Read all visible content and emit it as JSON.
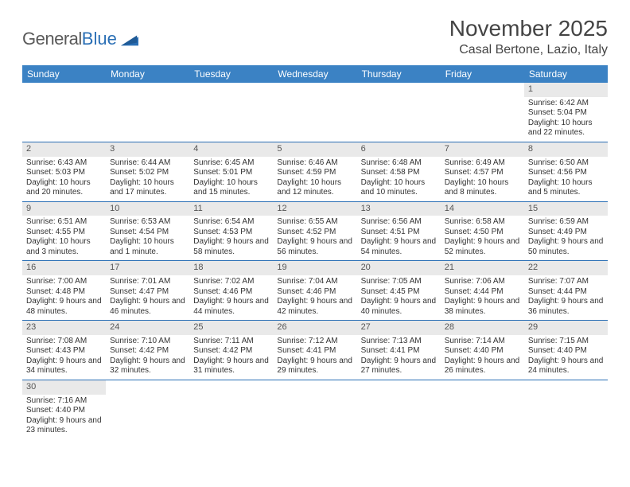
{
  "logo": {
    "word1": "General",
    "word2": "Blue"
  },
  "header": {
    "title": "November 2025",
    "location": "Casal Bertone, Lazio, Italy"
  },
  "colors": {
    "header_bar": "#3b82c4",
    "week_divider": "#2a6fb5",
    "daynum_bg": "#e9e9e9",
    "logo_gray": "#5a5a5a",
    "logo_blue": "#2a6fb5"
  },
  "dow": [
    "Sunday",
    "Monday",
    "Tuesday",
    "Wednesday",
    "Thursday",
    "Friday",
    "Saturday"
  ],
  "weeks": [
    [
      {
        "blank": true
      },
      {
        "blank": true
      },
      {
        "blank": true
      },
      {
        "blank": true
      },
      {
        "blank": true
      },
      {
        "blank": true
      },
      {
        "day": "1",
        "sunrise": "Sunrise: 6:42 AM",
        "sunset": "Sunset: 5:04 PM",
        "daylight": "Daylight: 10 hours and 22 minutes."
      }
    ],
    [
      {
        "day": "2",
        "sunrise": "Sunrise: 6:43 AM",
        "sunset": "Sunset: 5:03 PM",
        "daylight": "Daylight: 10 hours and 20 minutes."
      },
      {
        "day": "3",
        "sunrise": "Sunrise: 6:44 AM",
        "sunset": "Sunset: 5:02 PM",
        "daylight": "Daylight: 10 hours and 17 minutes."
      },
      {
        "day": "4",
        "sunrise": "Sunrise: 6:45 AM",
        "sunset": "Sunset: 5:01 PM",
        "daylight": "Daylight: 10 hours and 15 minutes."
      },
      {
        "day": "5",
        "sunrise": "Sunrise: 6:46 AM",
        "sunset": "Sunset: 4:59 PM",
        "daylight": "Daylight: 10 hours and 12 minutes."
      },
      {
        "day": "6",
        "sunrise": "Sunrise: 6:48 AM",
        "sunset": "Sunset: 4:58 PM",
        "daylight": "Daylight: 10 hours and 10 minutes."
      },
      {
        "day": "7",
        "sunrise": "Sunrise: 6:49 AM",
        "sunset": "Sunset: 4:57 PM",
        "daylight": "Daylight: 10 hours and 8 minutes."
      },
      {
        "day": "8",
        "sunrise": "Sunrise: 6:50 AM",
        "sunset": "Sunset: 4:56 PM",
        "daylight": "Daylight: 10 hours and 5 minutes."
      }
    ],
    [
      {
        "day": "9",
        "sunrise": "Sunrise: 6:51 AM",
        "sunset": "Sunset: 4:55 PM",
        "daylight": "Daylight: 10 hours and 3 minutes."
      },
      {
        "day": "10",
        "sunrise": "Sunrise: 6:53 AM",
        "sunset": "Sunset: 4:54 PM",
        "daylight": "Daylight: 10 hours and 1 minute."
      },
      {
        "day": "11",
        "sunrise": "Sunrise: 6:54 AM",
        "sunset": "Sunset: 4:53 PM",
        "daylight": "Daylight: 9 hours and 58 minutes."
      },
      {
        "day": "12",
        "sunrise": "Sunrise: 6:55 AM",
        "sunset": "Sunset: 4:52 PM",
        "daylight": "Daylight: 9 hours and 56 minutes."
      },
      {
        "day": "13",
        "sunrise": "Sunrise: 6:56 AM",
        "sunset": "Sunset: 4:51 PM",
        "daylight": "Daylight: 9 hours and 54 minutes."
      },
      {
        "day": "14",
        "sunrise": "Sunrise: 6:58 AM",
        "sunset": "Sunset: 4:50 PM",
        "daylight": "Daylight: 9 hours and 52 minutes."
      },
      {
        "day": "15",
        "sunrise": "Sunrise: 6:59 AM",
        "sunset": "Sunset: 4:49 PM",
        "daylight": "Daylight: 9 hours and 50 minutes."
      }
    ],
    [
      {
        "day": "16",
        "sunrise": "Sunrise: 7:00 AM",
        "sunset": "Sunset: 4:48 PM",
        "daylight": "Daylight: 9 hours and 48 minutes."
      },
      {
        "day": "17",
        "sunrise": "Sunrise: 7:01 AM",
        "sunset": "Sunset: 4:47 PM",
        "daylight": "Daylight: 9 hours and 46 minutes."
      },
      {
        "day": "18",
        "sunrise": "Sunrise: 7:02 AM",
        "sunset": "Sunset: 4:46 PM",
        "daylight": "Daylight: 9 hours and 44 minutes."
      },
      {
        "day": "19",
        "sunrise": "Sunrise: 7:04 AM",
        "sunset": "Sunset: 4:46 PM",
        "daylight": "Daylight: 9 hours and 42 minutes."
      },
      {
        "day": "20",
        "sunrise": "Sunrise: 7:05 AM",
        "sunset": "Sunset: 4:45 PM",
        "daylight": "Daylight: 9 hours and 40 minutes."
      },
      {
        "day": "21",
        "sunrise": "Sunrise: 7:06 AM",
        "sunset": "Sunset: 4:44 PM",
        "daylight": "Daylight: 9 hours and 38 minutes."
      },
      {
        "day": "22",
        "sunrise": "Sunrise: 7:07 AM",
        "sunset": "Sunset: 4:44 PM",
        "daylight": "Daylight: 9 hours and 36 minutes."
      }
    ],
    [
      {
        "day": "23",
        "sunrise": "Sunrise: 7:08 AM",
        "sunset": "Sunset: 4:43 PM",
        "daylight": "Daylight: 9 hours and 34 minutes."
      },
      {
        "day": "24",
        "sunrise": "Sunrise: 7:10 AM",
        "sunset": "Sunset: 4:42 PM",
        "daylight": "Daylight: 9 hours and 32 minutes."
      },
      {
        "day": "25",
        "sunrise": "Sunrise: 7:11 AM",
        "sunset": "Sunset: 4:42 PM",
        "daylight": "Daylight: 9 hours and 31 minutes."
      },
      {
        "day": "26",
        "sunrise": "Sunrise: 7:12 AM",
        "sunset": "Sunset: 4:41 PM",
        "daylight": "Daylight: 9 hours and 29 minutes."
      },
      {
        "day": "27",
        "sunrise": "Sunrise: 7:13 AM",
        "sunset": "Sunset: 4:41 PM",
        "daylight": "Daylight: 9 hours and 27 minutes."
      },
      {
        "day": "28",
        "sunrise": "Sunrise: 7:14 AM",
        "sunset": "Sunset: 4:40 PM",
        "daylight": "Daylight: 9 hours and 26 minutes."
      },
      {
        "day": "29",
        "sunrise": "Sunrise: 7:15 AM",
        "sunset": "Sunset: 4:40 PM",
        "daylight": "Daylight: 9 hours and 24 minutes."
      }
    ],
    [
      {
        "day": "30",
        "sunrise": "Sunrise: 7:16 AM",
        "sunset": "Sunset: 4:40 PM",
        "daylight": "Daylight: 9 hours and 23 minutes."
      },
      {
        "blank": true
      },
      {
        "blank": true
      },
      {
        "blank": true
      },
      {
        "blank": true
      },
      {
        "blank": true
      },
      {
        "blank": true
      }
    ]
  ]
}
